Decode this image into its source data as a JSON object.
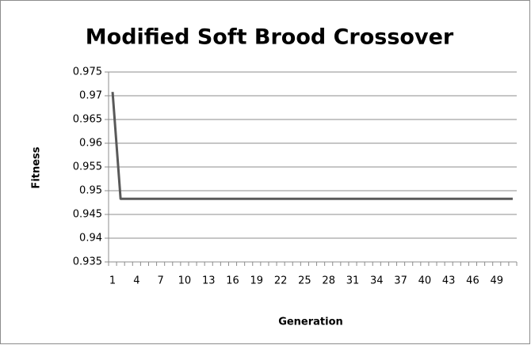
{
  "chart_data": {
    "type": "line",
    "title": "Modified Soft Brood Crossover",
    "x_label": "Generation",
    "y_label": "Fitness",
    "categories": [
      1,
      null,
      null,
      4,
      null,
      null,
      7,
      null,
      null,
      10,
      null,
      null,
      13,
      null,
      null,
      16,
      null,
      null,
      19,
      null,
      null,
      22,
      null,
      null,
      25,
      null,
      null,
      28,
      null,
      null,
      31,
      null,
      null,
      34,
      null,
      null,
      37,
      null,
      null,
      40,
      null,
      null,
      43,
      null,
      null,
      46,
      null,
      null,
      49,
      null,
      null
    ],
    "series": [
      {
        "name": "Fitness",
        "color": "#595959",
        "values": [
          0.9708,
          0.9483,
          0.9483,
          0.9483,
          0.9483,
          0.9483,
          0.9483,
          0.9483,
          0.9483,
          0.9483,
          0.9483,
          0.9483,
          0.9483,
          0.9483,
          0.9483,
          0.9483,
          0.9483,
          0.9483,
          0.9483,
          0.9483,
          0.9483,
          0.9483,
          0.9483,
          0.9483,
          0.9483,
          0.9483,
          0.9483,
          0.9483,
          0.9483,
          0.9483,
          0.9483,
          0.9483,
          0.9483,
          0.9483,
          0.9483,
          0.9483,
          0.9483,
          0.9483,
          0.9483,
          0.9483,
          0.9483,
          0.9483,
          0.9483,
          0.9483,
          0.9483,
          0.9483,
          0.9483,
          0.9483,
          0.9483,
          0.9483,
          0.9483
        ]
      }
    ],
    "ylim": [
      0.935,
      0.975
    ],
    "yticks": [
      0.935,
      0.94,
      0.945,
      0.95,
      0.955,
      0.96,
      0.965,
      0.97,
      0.975
    ],
    "grid": true
  }
}
